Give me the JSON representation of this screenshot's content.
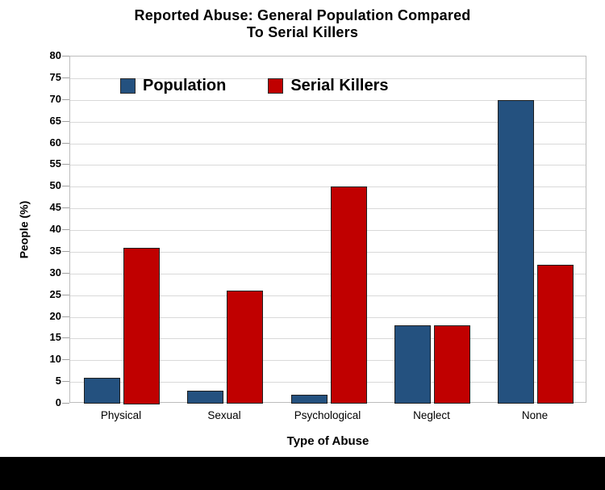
{
  "page": {
    "background_color": "#FFFFFF",
    "footer_bar_color": "#000000"
  },
  "chart_data": {
    "type": "bar",
    "title": "Reported Abuse: General Population Compared To Serial Killers",
    "title_lines": [
      "Reported Abuse: General Population Compared",
      "To Serial Killers"
    ],
    "categories": [
      "Physical",
      "Sexual",
      "Psychological",
      "Neglect",
      "None"
    ],
    "series": [
      {
        "name": "Population",
        "color": "#24517F",
        "values": [
          6,
          3,
          2,
          18,
          70
        ]
      },
      {
        "name": "Serial Killers",
        "color": "#C00000",
        "values": [
          36,
          26,
          50,
          18,
          32
        ]
      }
    ],
    "xlabel": "Type of Abuse",
    "ylabel": "People (%)",
    "ylim": [
      0,
      80
    ],
    "ytick_step": 5,
    "grid": "horizontal",
    "legend_position": "top-inside",
    "bar_outline_color": "#1F1F1F",
    "gridline_color": "#D9D9D9",
    "plot_border_color": "#BDBDBD",
    "tick_mark_color": "#A0A0A0",
    "text_color": "#000000"
  }
}
